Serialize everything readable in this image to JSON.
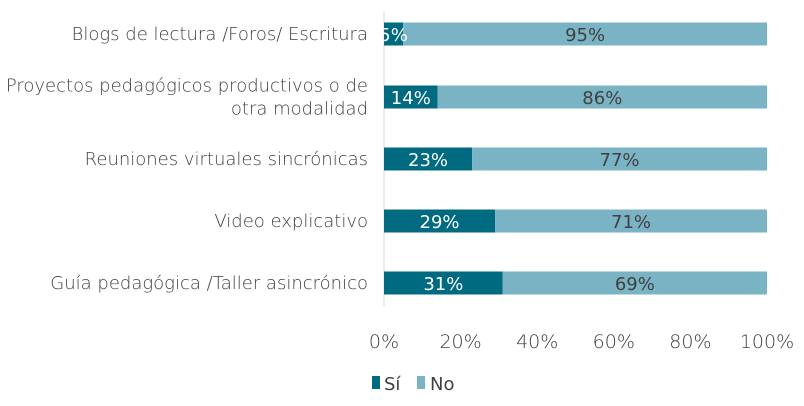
{
  "chart_data": {
    "type": "bar",
    "orientation": "horizontal",
    "stacked": true,
    "categories": [
      [
        "Blogs de lectura /Foros/ Escritura"
      ],
      [
        "Proyectos pedagógicos productivos o de",
        "otra modalidad"
      ],
      [
        "Reuniones virtuales sincrónicas"
      ],
      [
        "Video explicativo"
      ],
      [
        "Guía pedagógica /Taller asincrónico"
      ]
    ],
    "series": [
      {
        "name": "Sí",
        "values": [
          5,
          14,
          23,
          29,
          31
        ],
        "labels": [
          "5%",
          "14%",
          "23%",
          "29%",
          "31%"
        ],
        "color": "#006a80"
      },
      {
        "name": "No",
        "values": [
          95,
          86,
          77,
          71,
          69
        ],
        "labels": [
          "95%",
          "86%",
          "77%",
          "71%",
          "69%"
        ],
        "color": "#7ab3c4"
      }
    ],
    "xlim": [
      0,
      100
    ],
    "ticks": [
      "0%",
      "20%",
      "40%",
      "60%",
      "80%",
      "100%"
    ],
    "grid": false,
    "legend": "bottom-center"
  }
}
